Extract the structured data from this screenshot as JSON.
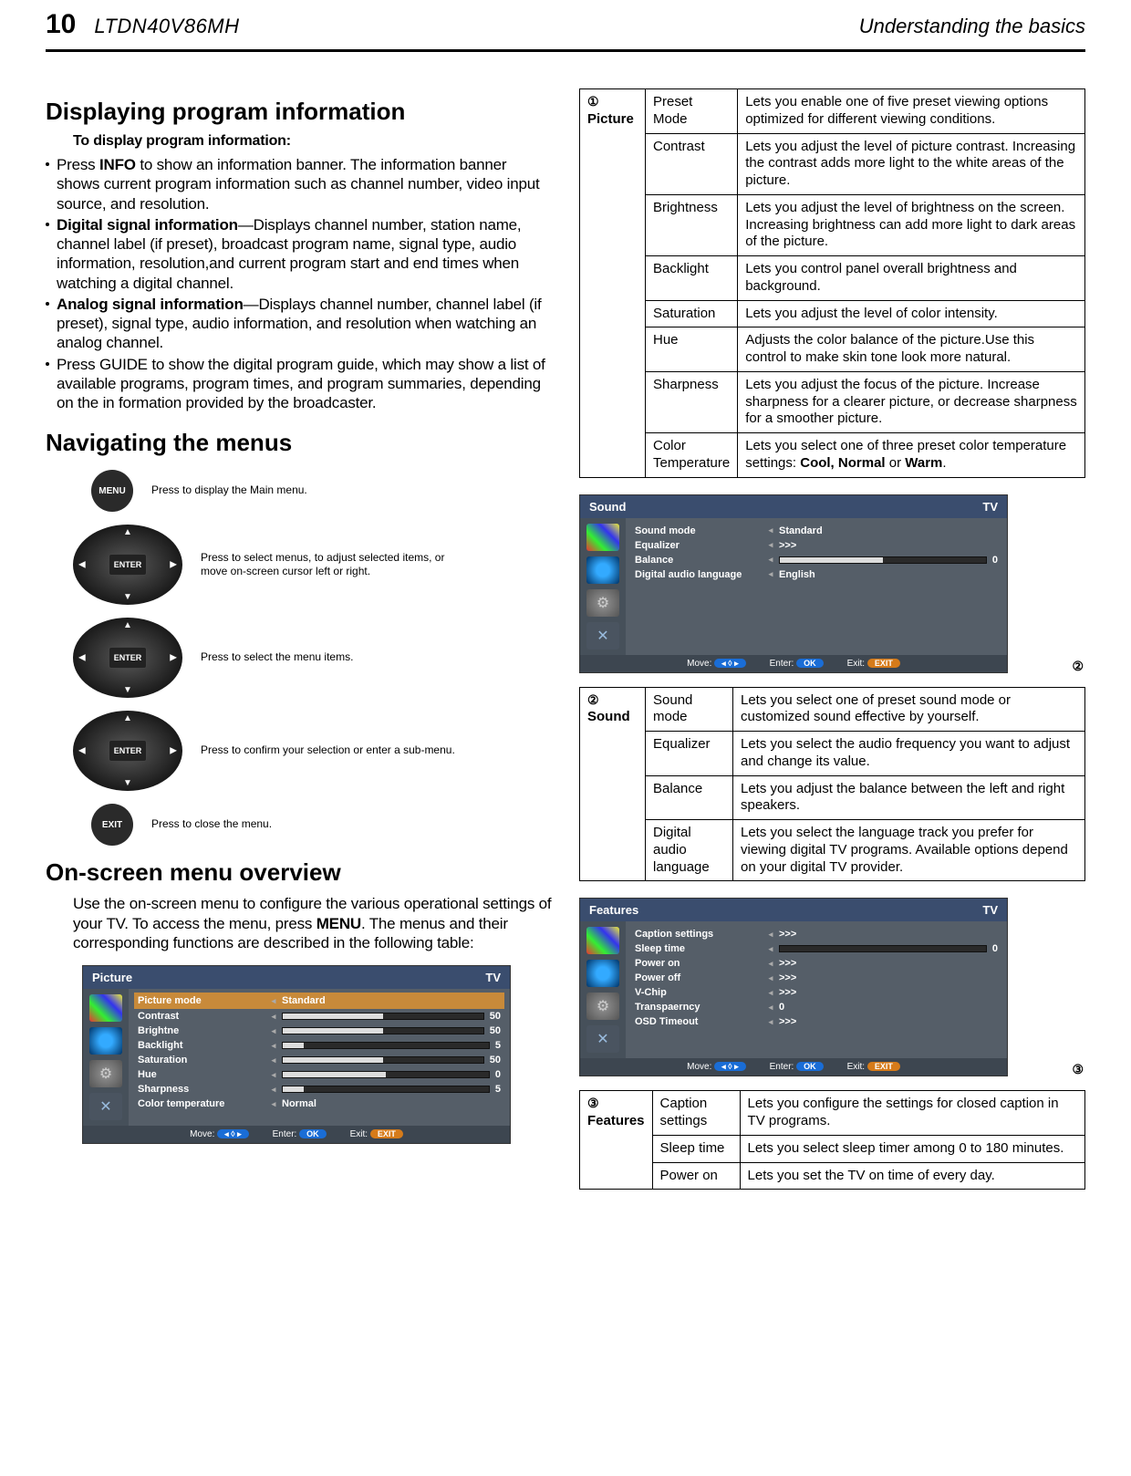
{
  "header": {
    "page_number": "10",
    "model": "LTDN40V86MH",
    "section": "Understanding the basics"
  },
  "left": {
    "h_display": "Displaying program information",
    "to_display": "To display program information:",
    "info_line": "Press INFO to show an information banner. The information banner shows current program information such as channel number, video input source, and resolution.",
    "info_word": "INFO",
    "digital_label": "Digital signal information",
    "digital_text": "—Displays channel number, station name, channel label (if preset), broadcast program name, signal type, audio information, resolution,and current program start and end times when watching a digital channel.",
    "analog_label": "Analog signal information",
    "analog_text": "—Displays channel number, channel label (if preset), signal type, audio information, and resolution when watching an analog channel.",
    "guide_text": "Press GUIDE to show the digital program guide, which may show a list of available programs, program times, and program summaries, depending on the in  formation provided  by the broadcaster.",
    "h_nav": "Navigating the menus",
    "menu_btn": "MENU",
    "menu_text": "Press to display the Main menu.",
    "enter_btn": "ENTER",
    "dpad1_text": "Press to select menus, to adjust selected items, or move on-screen cursor left or right.",
    "dpad2_text": "Press to select the menu items.",
    "dpad3_text": "Press to confirm your selection or enter a sub-menu.",
    "exit_btn": "EXIT",
    "exit_text": "Press to close the menu.",
    "h_osd": "On-screen menu overview",
    "osd_intro_a": "Use the on-screen menu to configure the various operational settings of your TV. To access the menu, press ",
    "osd_intro_b": ". The menus and their corresponding functions are described in the following table:",
    "menu_word": "MENU"
  },
  "osd_footer": {
    "move": "Move:",
    "enter": "Enter:",
    "exit": "Exit:",
    "ok": "OK",
    "arrows": "◂ ◊ ▸",
    "exit_pill": "EXIT"
  },
  "osd_picture": {
    "title": "Picture",
    "source": "TV",
    "rows": [
      {
        "label": "Picture mode",
        "value": "Standard",
        "highlight": true,
        "type": "text"
      },
      {
        "label": "Contrast",
        "value": "50",
        "type": "bar",
        "pct": 50
      },
      {
        "label": "Brightne",
        "value": "50",
        "type": "bar",
        "pct": 50
      },
      {
        "label": "Backlight",
        "value": "5",
        "type": "bar",
        "pct": 10
      },
      {
        "label": "Saturation",
        "value": "50",
        "type": "bar",
        "pct": 50
      },
      {
        "label": "Hue",
        "value": "0",
        "type": "bar",
        "pct": 50
      },
      {
        "label": "Sharpness",
        "value": "5",
        "type": "bar",
        "pct": 10
      },
      {
        "label": "Color temperature",
        "value": "Normal",
        "type": "text"
      }
    ]
  },
  "osd_sound": {
    "title": "Sound",
    "source": "TV",
    "rows": [
      {
        "label": "Sound mode",
        "value": "Standard",
        "type": "text"
      },
      {
        "label": "Equalizer",
        "value": ">>>",
        "type": "text"
      },
      {
        "label": "Balance",
        "value": "0",
        "type": "bar",
        "pct": 50
      },
      {
        "label": "Digital audio language",
        "value": "English",
        "type": "text"
      }
    ]
  },
  "osd_features": {
    "title": "Features",
    "source": "TV",
    "rows": [
      {
        "label": "Caption settings",
        "value": ">>>",
        "type": "text"
      },
      {
        "label": "Sleep time",
        "value": "0",
        "type": "bar",
        "pct": 0
      },
      {
        "label": "Power on",
        "value": ">>>",
        "type": "text"
      },
      {
        "label": "Power off",
        "value": ">>>",
        "type": "text"
      },
      {
        "label": "V-Chip",
        "value": ">>>",
        "type": "text"
      },
      {
        "label": "Transpaerncy",
        "value": "0",
        "type": "text"
      },
      {
        "label": "OSD Timeout",
        "value": ">>>",
        "type": "text"
      }
    ]
  },
  "table_picture": {
    "section": "Picture",
    "num": "①",
    "rows": [
      {
        "k": "Preset  Mode",
        "v": "Lets you enable one of five preset viewing options optimized for different viewing conditions."
      },
      {
        "k": "Contrast",
        "v": "Lets you adjust the level of picture contrast. Increasing the contrast adds more light to the white areas of the picture."
      },
      {
        "k": "Brightness",
        "v": "Lets you adjust the level of brightness on the screen. Increasing brightness can add more light to dark areas of the picture."
      },
      {
        "k": "Backlight",
        "v": "Lets you control panel overall brightness and background."
      },
      {
        "k": "Saturation",
        "v": "Lets you adjust the level of color intensity."
      },
      {
        "k": "Hue",
        "v": "Adjusts the color balance of the picture.Use this control to make skin tone look more natural."
      },
      {
        "k": "Sharpness",
        "v": "Lets you adjust the focus of the picture. Increase sharpness for a clearer picture, or decrease sharpness for a smoother picture."
      },
      {
        "k": "Color Temperature",
        "v": "Lets you select one of three preset color temperature settings: Cool, Normal or Warm."
      }
    ]
  },
  "table_sound": {
    "section": "Sound",
    "num": "②",
    "rows": [
      {
        "k": "Sound mode",
        "v": "Lets you select one of preset sound mode or customized sound effective by yourself."
      },
      {
        "k": "Equalizer",
        "v": "Lets you select the audio frequency you want to adjust and change its value."
      },
      {
        "k": "Balance",
        "v": "Lets you adjust the balance between the left and right speakers."
      },
      {
        "k": "Digital audio language",
        "v": "Lets you select the language track you prefer for viewing digital TV programs. Available options depend on your digital TV provider."
      }
    ]
  },
  "table_features": {
    "section": "Features",
    "num": "③",
    "rows": [
      {
        "k": "Caption settings",
        "v": "Lets you configure the settings for closed caption in TV programs."
      },
      {
        "k": "Sleep time",
        "v": "Lets you select sleep timer among 0 to 180 minutes."
      },
      {
        "k": "Power on",
        "v": "Lets you  set the TV on time of every day."
      }
    ]
  },
  "badges": {
    "two": "②",
    "three": "③"
  }
}
